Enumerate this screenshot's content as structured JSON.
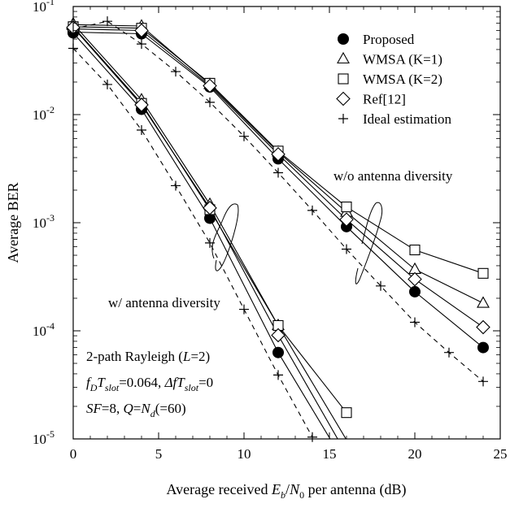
{
  "chart_data": {
    "type": "line",
    "title": "",
    "xlabel": "Average received E_b/N_0 per antenna (dB)",
    "xlabel_parts": [
      "Average received ",
      "E",
      "b",
      "/",
      "N",
      "0",
      " per antenna (dB)"
    ],
    "ylabel": "Average BER",
    "xlim": [
      0,
      25
    ],
    "ylim": [
      1e-05,
      0.1
    ],
    "yscale": "log",
    "grid": false,
    "x_ticks": [
      "0",
      "5",
      "10",
      "15",
      "20",
      "25"
    ],
    "y_ticks": [
      {
        "base": "10",
        "exp": "-5"
      },
      {
        "base": "10",
        "exp": "-4"
      },
      {
        "base": "10",
        "exp": "-3"
      },
      {
        "base": "10",
        "exp": "-2"
      },
      {
        "base": "10",
        "exp": "-1"
      }
    ],
    "legend": {
      "placement": "top-right",
      "entries": [
        {
          "label": "Proposed",
          "marker": "filled-circle"
        },
        {
          "label": "WMSA (K=1)",
          "marker": "triangle"
        },
        {
          "label": "WMSA (K=2)",
          "marker": "square"
        },
        {
          "label": "Ref[12]",
          "marker": "diamond"
        },
        {
          "label": "Ideal estimation",
          "marker": "plus"
        }
      ]
    },
    "annotations": {
      "without_diversity": "w/o antenna diversity",
      "with_diversity": "w/ antenna diversity",
      "channel": [
        "2-path Rayleigh (",
        "L",
        "=2)"
      ],
      "params1": [
        "f",
        "D",
        "T",
        "slot",
        "=0.064, ",
        "Δf",
        "T",
        "slot",
        "=0"
      ],
      "params2": [
        "SF",
        "=8, ",
        "Q",
        "=",
        "N",
        "d",
        "(=60)"
      ]
    },
    "series": [
      {
        "group": "w/o antenna diversity",
        "marker": "filled-circle",
        "style": "solid",
        "x": [
          0,
          4,
          8,
          12,
          16,
          20,
          24
        ],
        "y": [
          0.058,
          0.056,
          0.018,
          0.0039,
          0.00092,
          0.00023,
          7e-05
        ]
      },
      {
        "group": "w/o antenna diversity",
        "marker": "triangle",
        "style": "solid",
        "x": [
          0,
          4,
          8,
          12,
          16,
          20,
          24
        ],
        "y": [
          0.068,
          0.066,
          0.019,
          0.0045,
          0.00125,
          0.00037,
          0.00018
        ]
      },
      {
        "group": "w/o antenna diversity",
        "marker": "square",
        "style": "solid",
        "x": [
          0,
          4,
          8,
          12,
          16,
          20,
          24
        ],
        "y": [
          0.065,
          0.063,
          0.0195,
          0.0046,
          0.0014,
          0.00056,
          0.00034
        ]
      },
      {
        "group": "w/o antenna diversity",
        "marker": "diamond",
        "style": "solid",
        "x": [
          0,
          4,
          8,
          12,
          16,
          20,
          24
        ],
        "y": [
          0.062,
          0.06,
          0.0185,
          0.0043,
          0.00107,
          0.0003,
          0.000108
        ]
      },
      {
        "group": "w/o antenna diversity",
        "marker": "plus",
        "style": "dashed",
        "x": [
          0,
          2,
          4,
          6,
          8,
          10,
          12,
          14,
          16,
          18,
          20,
          22,
          24
        ],
        "y": [
          0.062,
          0.073,
          0.045,
          0.025,
          0.013,
          0.0063,
          0.0029,
          0.0013,
          0.00057,
          0.00026,
          0.00012,
          6.3e-05,
          3.4e-05
        ]
      },
      {
        "group": "w/ antenna diversity",
        "marker": "filled-circle",
        "style": "solid",
        "x": [
          0,
          4,
          8,
          12,
          16
        ],
        "y": [
          0.057,
          0.0112,
          0.0011,
          6.3e-05,
          5.6e-06
        ]
      },
      {
        "group": "w/ antenna diversity",
        "marker": "triangle",
        "style": "solid",
        "x": [
          0,
          4,
          8,
          12,
          16
        ],
        "y": [
          0.069,
          0.0137,
          0.00148,
          0.000112,
          9.8e-06
        ]
      },
      {
        "group": "w/ antenna diversity",
        "marker": "square",
        "style": "solid",
        "x": [
          0,
          4,
          8,
          12,
          16
        ],
        "y": [
          0.065,
          0.0127,
          0.00132,
          0.000112,
          1.75e-05
        ]
      },
      {
        "group": "w/ antenna diversity",
        "marker": "diamond",
        "style": "solid",
        "x": [
          0,
          4,
          8,
          12,
          16
        ],
        "y": [
          0.064,
          0.0123,
          0.00137,
          9.1e-05,
          7.2e-06
        ]
      },
      {
        "group": "w/ antenna diversity",
        "marker": "plus",
        "style": "dashed",
        "x": [
          0,
          2,
          4,
          6,
          8,
          10,
          12,
          14
        ],
        "y": [
          0.041,
          0.019,
          0.0072,
          0.0022,
          0.00065,
          0.000158,
          3.9e-05,
          1.04e-05
        ]
      }
    ]
  }
}
